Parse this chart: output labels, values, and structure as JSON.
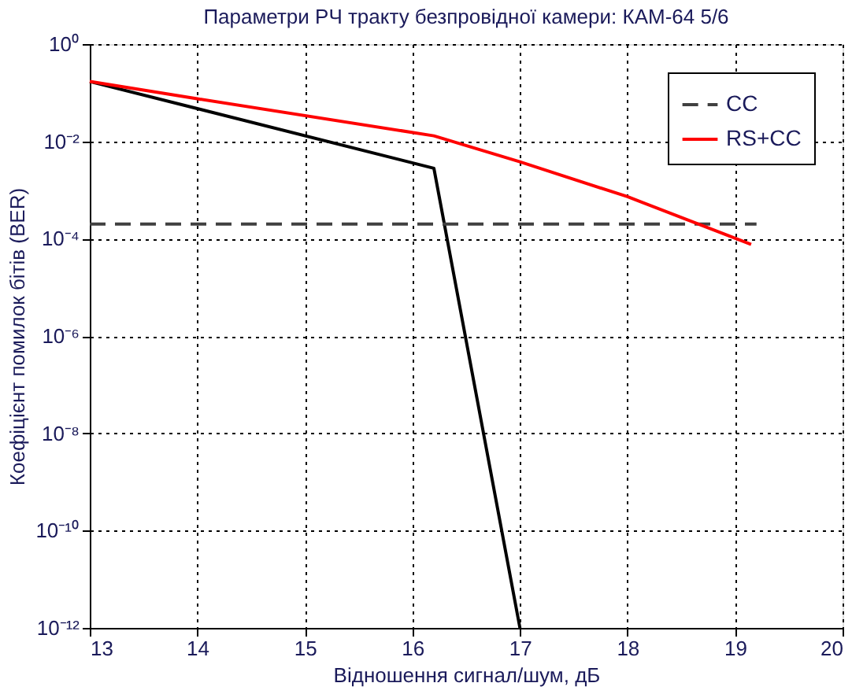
{
  "chart_data": {
    "type": "line",
    "title": "Параметри РЧ тракту безпровідної камери: КАМ-64 5/6",
    "xlabel": "Відношення сигнал/шум, дБ",
    "ylabel": "Коефіцієнт помилок бітів (BER)",
    "log": "y",
    "grid": true,
    "legend": "top right",
    "marker": "none",
    "xlim": [
      13,
      20
    ],
    "xticks": [
      13,
      14,
      15,
      16,
      17,
      18,
      19,
      20
    ],
    "ylim": [
      1e-12,
      1
    ],
    "yticks": [
      {
        "value": 1e-12,
        "label": "10⁻¹²"
      },
      {
        "value": 1e-10,
        "label": "10⁻¹⁰"
      },
      {
        "value": 1e-08,
        "label": "10⁻⁸"
      },
      {
        "value": 1e-06,
        "label": "10⁻⁶"
      },
      {
        "value": 0.0001,
        "label": "10⁻⁴"
      },
      {
        "value": 0.01,
        "label": "10⁻²"
      },
      {
        "value": 1,
        "label": "10⁰"
      }
    ],
    "series": [
      {
        "name": "CC",
        "color": "#404040",
        "line_style": "dashed",
        "x": [
          13,
          19.2
        ],
        "values": [
          0.0002,
          0.0002
        ]
      },
      {
        "name": "RS+CC",
        "color": "#ff0000",
        "line_style": "solid",
        "x": [
          13,
          14,
          16.2,
          17,
          18,
          19.15
        ],
        "values": [
          0.17,
          0.075,
          0.013,
          0.0038,
          0.00073,
          7.6e-05
        ]
      },
      {
        "color": "#000000",
        "line_style": "solid",
        "x": [
          13,
          16.2,
          17
        ],
        "values": [
          0.17,
          0.0028,
          1e-12
        ]
      }
    ]
  }
}
